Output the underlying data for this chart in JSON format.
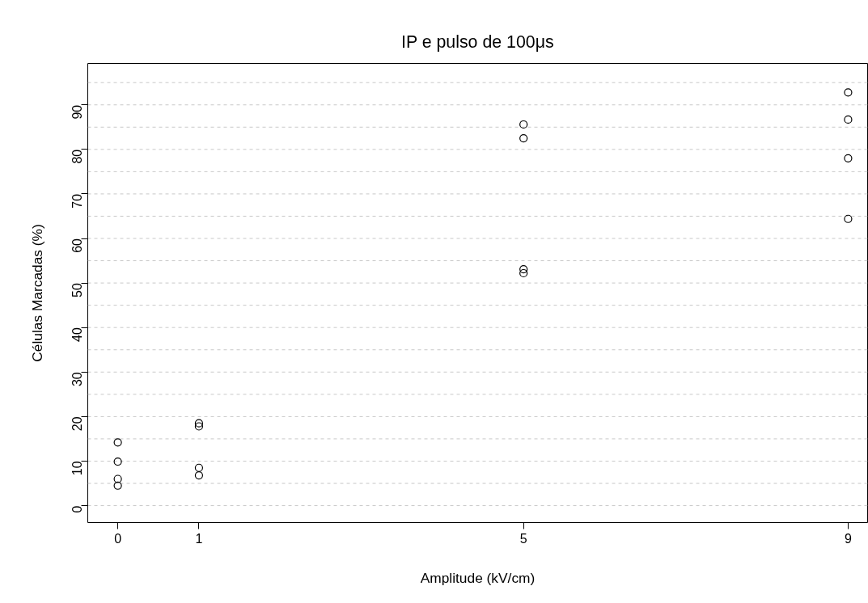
{
  "chart_data": {
    "type": "scatter",
    "title": "IP e pulso de 100μs",
    "xlabel": "Amplitude (kV/cm)",
    "ylabel": "Células Marcadas (%)",
    "x": [
      0,
      0,
      0,
      0,
      1,
      1,
      1,
      1,
      5,
      5,
      5,
      5,
      9,
      9,
      9,
      9
    ],
    "series": [
      {
        "color": "#000000",
        "values": [
          14.2,
          9.9,
          6.0,
          4.5,
          18.5,
          17.8,
          8.5,
          6.8,
          85.6,
          82.5,
          53.1,
          52.2,
          92.8,
          86.7,
          78.0,
          64.4
        ]
      }
    ],
    "marker": "circle",
    "xlim": [
      -0.37,
      9.24
    ],
    "ylim": [
      -3.8,
      99.3
    ],
    "xticks": [
      0,
      1,
      5,
      9
    ],
    "yticks": [
      0,
      10,
      20,
      30,
      40,
      50,
      60,
      70,
      80,
      90
    ],
    "grid": false,
    "ref_lines": [
      {
        "axis": "y",
        "value": 0,
        "color": "#c8c8c8",
        "line_style": "dashed"
      },
      {
        "axis": "y",
        "value": 5,
        "color": "#c8c8c8",
        "line_style": "dashed"
      },
      {
        "axis": "y",
        "value": 10,
        "color": "#c8c8c8",
        "line_style": "dashed"
      },
      {
        "axis": "y",
        "value": 15,
        "color": "#c8c8c8",
        "line_style": "dashed"
      },
      {
        "axis": "y",
        "value": 20,
        "color": "#c8c8c8",
        "line_style": "dashed"
      },
      {
        "axis": "y",
        "value": 25,
        "color": "#c8c8c8",
        "line_style": "dashed"
      },
      {
        "axis": "y",
        "value": 30,
        "color": "#c8c8c8",
        "line_style": "dashed"
      },
      {
        "axis": "y",
        "value": 35,
        "color": "#c8c8c8",
        "line_style": "dashed"
      },
      {
        "axis": "y",
        "value": 40,
        "color": "#c8c8c8",
        "line_style": "dashed"
      },
      {
        "axis": "y",
        "value": 45,
        "color": "#c8c8c8",
        "line_style": "dashed"
      },
      {
        "axis": "y",
        "value": 50,
        "color": "#c8c8c8",
        "line_style": "dashed"
      },
      {
        "axis": "y",
        "value": 55,
        "color": "#c8c8c8",
        "line_style": "dashed"
      },
      {
        "axis": "y",
        "value": 60,
        "color": "#c8c8c8",
        "line_style": "dashed"
      },
      {
        "axis": "y",
        "value": 65,
        "color": "#c8c8c8",
        "line_style": "dashed"
      },
      {
        "axis": "y",
        "value": 70,
        "color": "#c8c8c8",
        "line_style": "dashed"
      },
      {
        "axis": "y",
        "value": 75,
        "color": "#c8c8c8",
        "line_style": "dashed"
      },
      {
        "axis": "y",
        "value": 80,
        "color": "#c8c8c8",
        "line_style": "dashed"
      },
      {
        "axis": "y",
        "value": 85,
        "color": "#c8c8c8",
        "line_style": "dashed"
      },
      {
        "axis": "y",
        "value": 90,
        "color": "#c8c8c8",
        "line_style": "dashed"
      },
      {
        "axis": "y",
        "value": 95,
        "color": "#c8c8c8",
        "line_style": "dashed"
      }
    ]
  }
}
